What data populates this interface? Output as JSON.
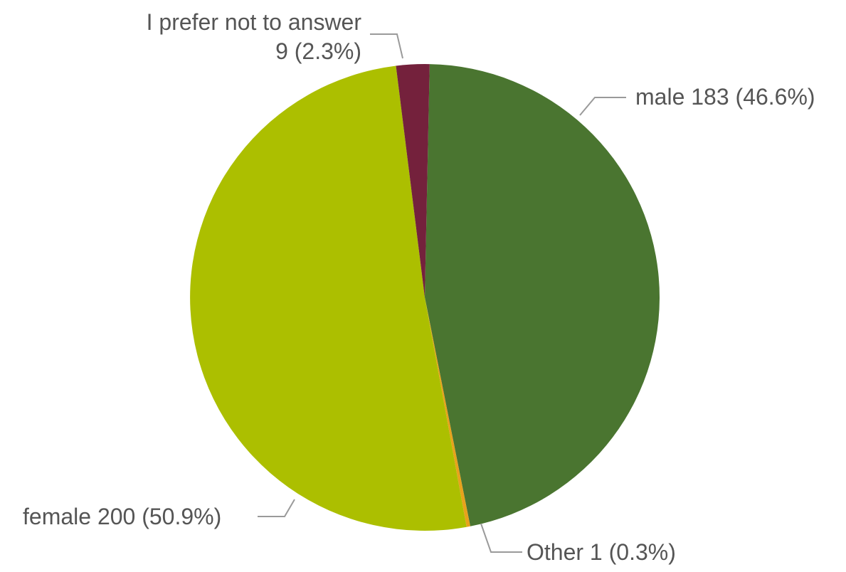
{
  "chart_data": {
    "type": "pie",
    "slices": [
      {
        "label": "male",
        "value": 183,
        "percent": "46.6%",
        "color": "#4a7530"
      },
      {
        "label": "Other",
        "value": 1,
        "percent": "0.3%",
        "color": "#e8a21c"
      },
      {
        "label": "female",
        "value": 200,
        "percent": "50.9%",
        "color": "#acbf00"
      },
      {
        "label": "I prefer not to answer",
        "value": 9,
        "percent": "2.3%",
        "color": "#74213c"
      }
    ],
    "label_texts": {
      "male": "male 183 (46.6%)",
      "other": "Other 1 (0.3%)",
      "female": "female 200 (50.9%)",
      "prefer_line1": "I prefer not to answer",
      "prefer_line2": "9 (2.3%)"
    }
  }
}
